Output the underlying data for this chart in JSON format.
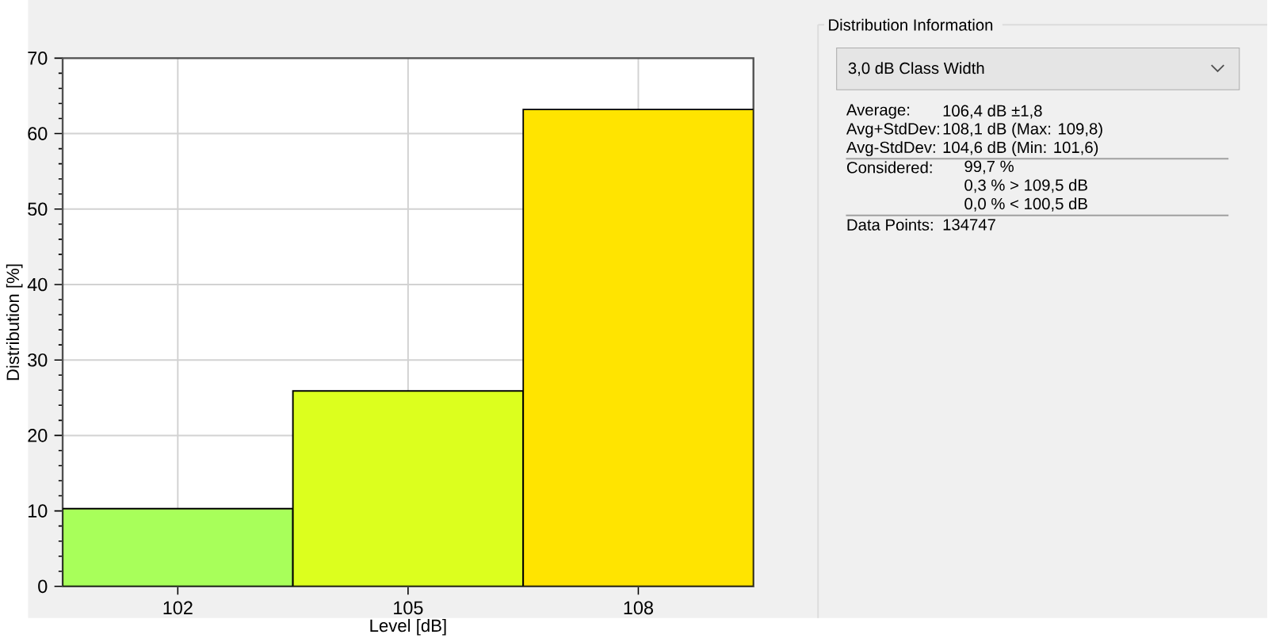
{
  "chart_data": {
    "type": "histogram",
    "xlabel": "Level [dB]",
    "ylabel": "Distribution [%]",
    "bins": [
      100.5,
      103.5,
      106.5,
      109.5
    ],
    "values": [
      10.3,
      25.9,
      63.2
    ],
    "colors": [
      "#a8ff5a",
      "#dcff1e",
      "#ffe400"
    ],
    "xlim": [
      100.5,
      109.5
    ],
    "xticks": [
      102,
      105,
      108
    ],
    "ylim": [
      0,
      70
    ],
    "yticks": [
      0,
      10,
      20,
      30,
      40,
      50,
      60,
      70
    ],
    "grid": true,
    "annotations": [
      "Distribution Information",
      "3,0 dB Class Width",
      "Average:",
      "106,4 dB ±1,8",
      "Avg+StdDev:",
      "108,1 dB (Max: 109,8)",
      "Avg-StdDev:",
      "104,6 dB (Min: 101,6)",
      "Considered:",
      "99,7 %",
      "0,3 % > 109,5 dB",
      "0,0 % < 100,5 dB",
      "Data Points:",
      "134747"
    ]
  }
}
